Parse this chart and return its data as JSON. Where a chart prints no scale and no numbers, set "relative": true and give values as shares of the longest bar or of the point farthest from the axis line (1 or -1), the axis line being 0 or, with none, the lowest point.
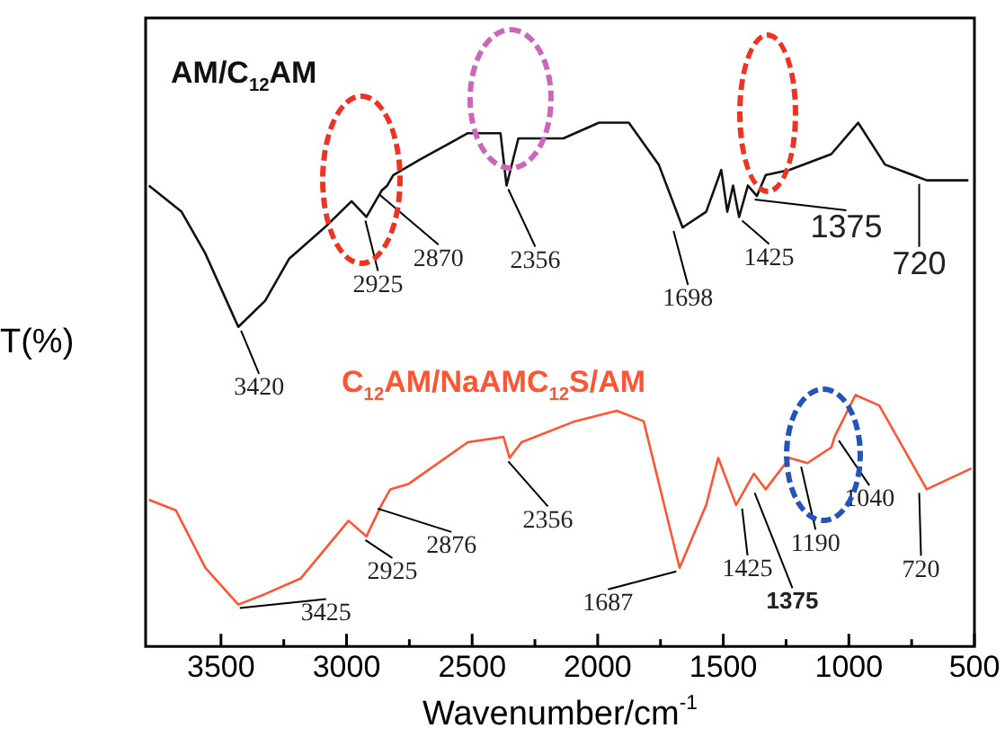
{
  "chart_data": {
    "type": "line",
    "relative": true,
    "xlabel": "Wavenumber/cm$^{-1}$",
    "ylabel": "T(%)",
    "xlim": [
      3800,
      500
    ],
    "xticks": [
      3500,
      3000,
      2500,
      2000,
      1500,
      1000,
      500
    ],
    "grid": false,
    "legend": false,
    "marker": "none",
    "line_style": "solid",
    "series": [
      {
        "name": "AM/C$_{12}$AM",
        "color": "#111111",
        "x": [
          3787,
          3657,
          3562,
          3431,
          3324,
          3229,
          3087,
          2980,
          2921,
          2861,
          2838,
          2814,
          2707,
          2517,
          2387,
          2363,
          2316,
          2137,
          1995,
          1876,
          1757,
          1662,
          1568,
          1508,
          1484,
          1461,
          1437,
          1402,
          1366,
          1331,
          1236,
          1070,
          963,
          856,
          690,
          524
        ],
        "values": [
          0.88,
          0.83,
          0.75,
          0.61,
          0.66,
          0.74,
          0.8,
          0.85,
          0.82,
          0.87,
          0.88,
          0.9,
          0.93,
          0.98,
          0.98,
          0.88,
          0.97,
          0.97,
          1,
          1,
          0.92,
          0.8,
          0.83,
          0.91,
          0.83,
          0.88,
          0.82,
          0.88,
          0.86,
          0.9,
          0.91,
          0.94,
          1,
          0.92,
          0.89,
          0.89
        ]
      },
      {
        "name": "C$_{12}$AM/NaAMC$_{12}$S/AM",
        "color": "#ff5533",
        "x": [
          3787,
          3680,
          3562,
          3431,
          3324,
          3182,
          2992,
          2921,
          2861,
          2826,
          2754,
          2517,
          2375,
          2351,
          2303,
          2090,
          1924,
          1817,
          1674,
          1568,
          1520,
          1449,
          1378,
          1331,
          1236,
          1165,
          1070,
          1057,
          974,
          879,
          690,
          512
        ],
        "values": [
          0.28,
          0.26,
          0.15,
          0.08,
          0.1,
          0.13,
          0.24,
          0.21,
          0.27,
          0.3,
          0.31,
          0.39,
          0.4,
          0.36,
          0.39,
          0.43,
          0.45,
          0.43,
          0.15,
          0.27,
          0.36,
          0.27,
          0.33,
          0.3,
          0.36,
          0.35,
          0.38,
          0.4,
          0.48,
          0.46,
          0.3,
          0.34
        ]
      }
    ],
    "annotations": [
      {
        "text": "3420",
        "x": 3420,
        "y": 0.61
      },
      {
        "text": "2925",
        "x": 2925,
        "y": 0.82
      },
      {
        "text": "2870",
        "x": 2870,
        "y": 0.87
      },
      {
        "text": "2356",
        "x": 2356,
        "y": 0.88
      },
      {
        "text": "1698",
        "x": 1698,
        "y": 0.8
      },
      {
        "text": "1425",
        "x": 1425,
        "y": 0.82
      },
      {
        "text": "1375",
        "x": 1375,
        "y": 0.86
      },
      {
        "text": "720",
        "x": 720,
        "y": 0.89
      },
      {
        "text": "3425",
        "x": 3425,
        "y": 0.08
      },
      {
        "text": "2925",
        "x": 2925,
        "y": 0.21
      },
      {
        "text": "2876",
        "x": 2876,
        "y": 0.27
      },
      {
        "text": "2356",
        "x": 2356,
        "y": 0.36
      },
      {
        "text": "1687",
        "x": 1687,
        "y": 0.15
      },
      {
        "text": "1425",
        "x": 1425,
        "y": 0.27
      },
      {
        "text": "1375",
        "x": 1375,
        "y": 0.3
      },
      {
        "text": "1190",
        "x": 1190,
        "y": 0.35
      },
      {
        "text": "1040",
        "x": 1040,
        "y": 0.4
      },
      {
        "text": "720",
        "x": 720,
        "y": 0.3
      }
    ]
  }
}
